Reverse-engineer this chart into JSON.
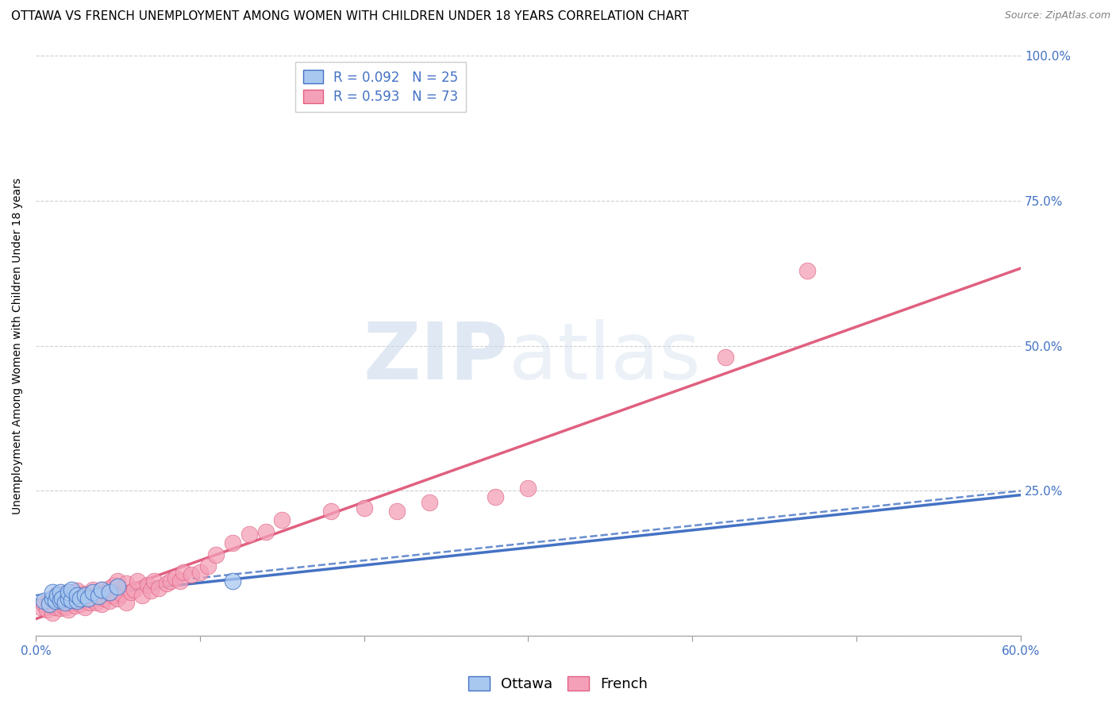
{
  "title": "OTTAWA VS FRENCH UNEMPLOYMENT AMONG WOMEN WITH CHILDREN UNDER 18 YEARS CORRELATION CHART",
  "source": "Source: ZipAtlas.com",
  "ylabel": "Unemployment Among Women with Children Under 18 years",
  "xlim": [
    0.0,
    0.6
  ],
  "ylim": [
    0.0,
    1.0
  ],
  "xticks": [
    0.0,
    0.1,
    0.2,
    0.3,
    0.4,
    0.5,
    0.6
  ],
  "xticklabels_ends": [
    "0.0%",
    "60.0%"
  ],
  "yticks": [
    0.0,
    0.25,
    0.5,
    0.75,
    1.0
  ],
  "yticklabels_right": [
    "",
    "25.0%",
    "50.0%",
    "75.0%",
    "100.0%"
  ],
  "ottawa_color": "#a8c8f0",
  "french_color": "#f4a0b8",
  "ottawa_line_color": "#4472c4",
  "french_line_color": "#e06080",
  "watermark_zip": "ZIP",
  "watermark_atlas": "atlas",
  "ottawa_R": 0.092,
  "ottawa_N": 25,
  "french_R": 0.593,
  "french_N": 73,
  "ottawa_scatter_x": [
    0.005,
    0.008,
    0.01,
    0.01,
    0.012,
    0.013,
    0.015,
    0.015,
    0.016,
    0.018,
    0.02,
    0.02,
    0.022,
    0.022,
    0.025,
    0.025,
    0.027,
    0.03,
    0.032,
    0.035,
    0.038,
    0.04,
    0.045,
    0.05,
    0.12
  ],
  "ottawa_scatter_y": [
    0.06,
    0.055,
    0.065,
    0.075,
    0.06,
    0.07,
    0.062,
    0.075,
    0.065,
    0.058,
    0.065,
    0.075,
    0.062,
    0.08,
    0.06,
    0.07,
    0.065,
    0.07,
    0.065,
    0.075,
    0.068,
    0.08,
    0.075,
    0.085,
    0.095
  ],
  "french_scatter_x": [
    0.003,
    0.005,
    0.007,
    0.008,
    0.01,
    0.01,
    0.012,
    0.012,
    0.013,
    0.015,
    0.015,
    0.016,
    0.018,
    0.018,
    0.02,
    0.02,
    0.022,
    0.022,
    0.024,
    0.025,
    0.025,
    0.027,
    0.028,
    0.03,
    0.03,
    0.032,
    0.033,
    0.035,
    0.035,
    0.037,
    0.038,
    0.04,
    0.04,
    0.042,
    0.043,
    0.045,
    0.045,
    0.047,
    0.048,
    0.05,
    0.05,
    0.052,
    0.055,
    0.055,
    0.058,
    0.06,
    0.062,
    0.065,
    0.068,
    0.07,
    0.072,
    0.075,
    0.08,
    0.082,
    0.085,
    0.088,
    0.09,
    0.095,
    0.1,
    0.105,
    0.11,
    0.12,
    0.13,
    0.14,
    0.15,
    0.18,
    0.2,
    0.22,
    0.24,
    0.28,
    0.3,
    0.42,
    0.47
  ],
  "french_scatter_y": [
    0.05,
    0.055,
    0.045,
    0.06,
    0.04,
    0.065,
    0.05,
    0.07,
    0.055,
    0.048,
    0.062,
    0.072,
    0.05,
    0.065,
    0.045,
    0.068,
    0.058,
    0.075,
    0.052,
    0.06,
    0.078,
    0.055,
    0.068,
    0.05,
    0.072,
    0.065,
    0.058,
    0.062,
    0.08,
    0.058,
    0.07,
    0.055,
    0.08,
    0.065,
    0.075,
    0.06,
    0.082,
    0.07,
    0.088,
    0.065,
    0.095,
    0.072,
    0.058,
    0.09,
    0.075,
    0.08,
    0.095,
    0.07,
    0.088,
    0.078,
    0.095,
    0.082,
    0.09,
    0.095,
    0.1,
    0.095,
    0.11,
    0.105,
    0.11,
    0.12,
    0.14,
    0.16,
    0.175,
    0.18,
    0.2,
    0.215,
    0.22,
    0.215,
    0.23,
    0.24,
    0.255,
    0.48,
    0.63
  ],
  "background_color": "#ffffff",
  "grid_color": "#d0d0d0",
  "title_fontsize": 11,
  "axis_label_fontsize": 10,
  "tick_fontsize": 11,
  "legend_fontsize": 12,
  "right_tick_color": "#4472c4",
  "source_color": "#808080"
}
